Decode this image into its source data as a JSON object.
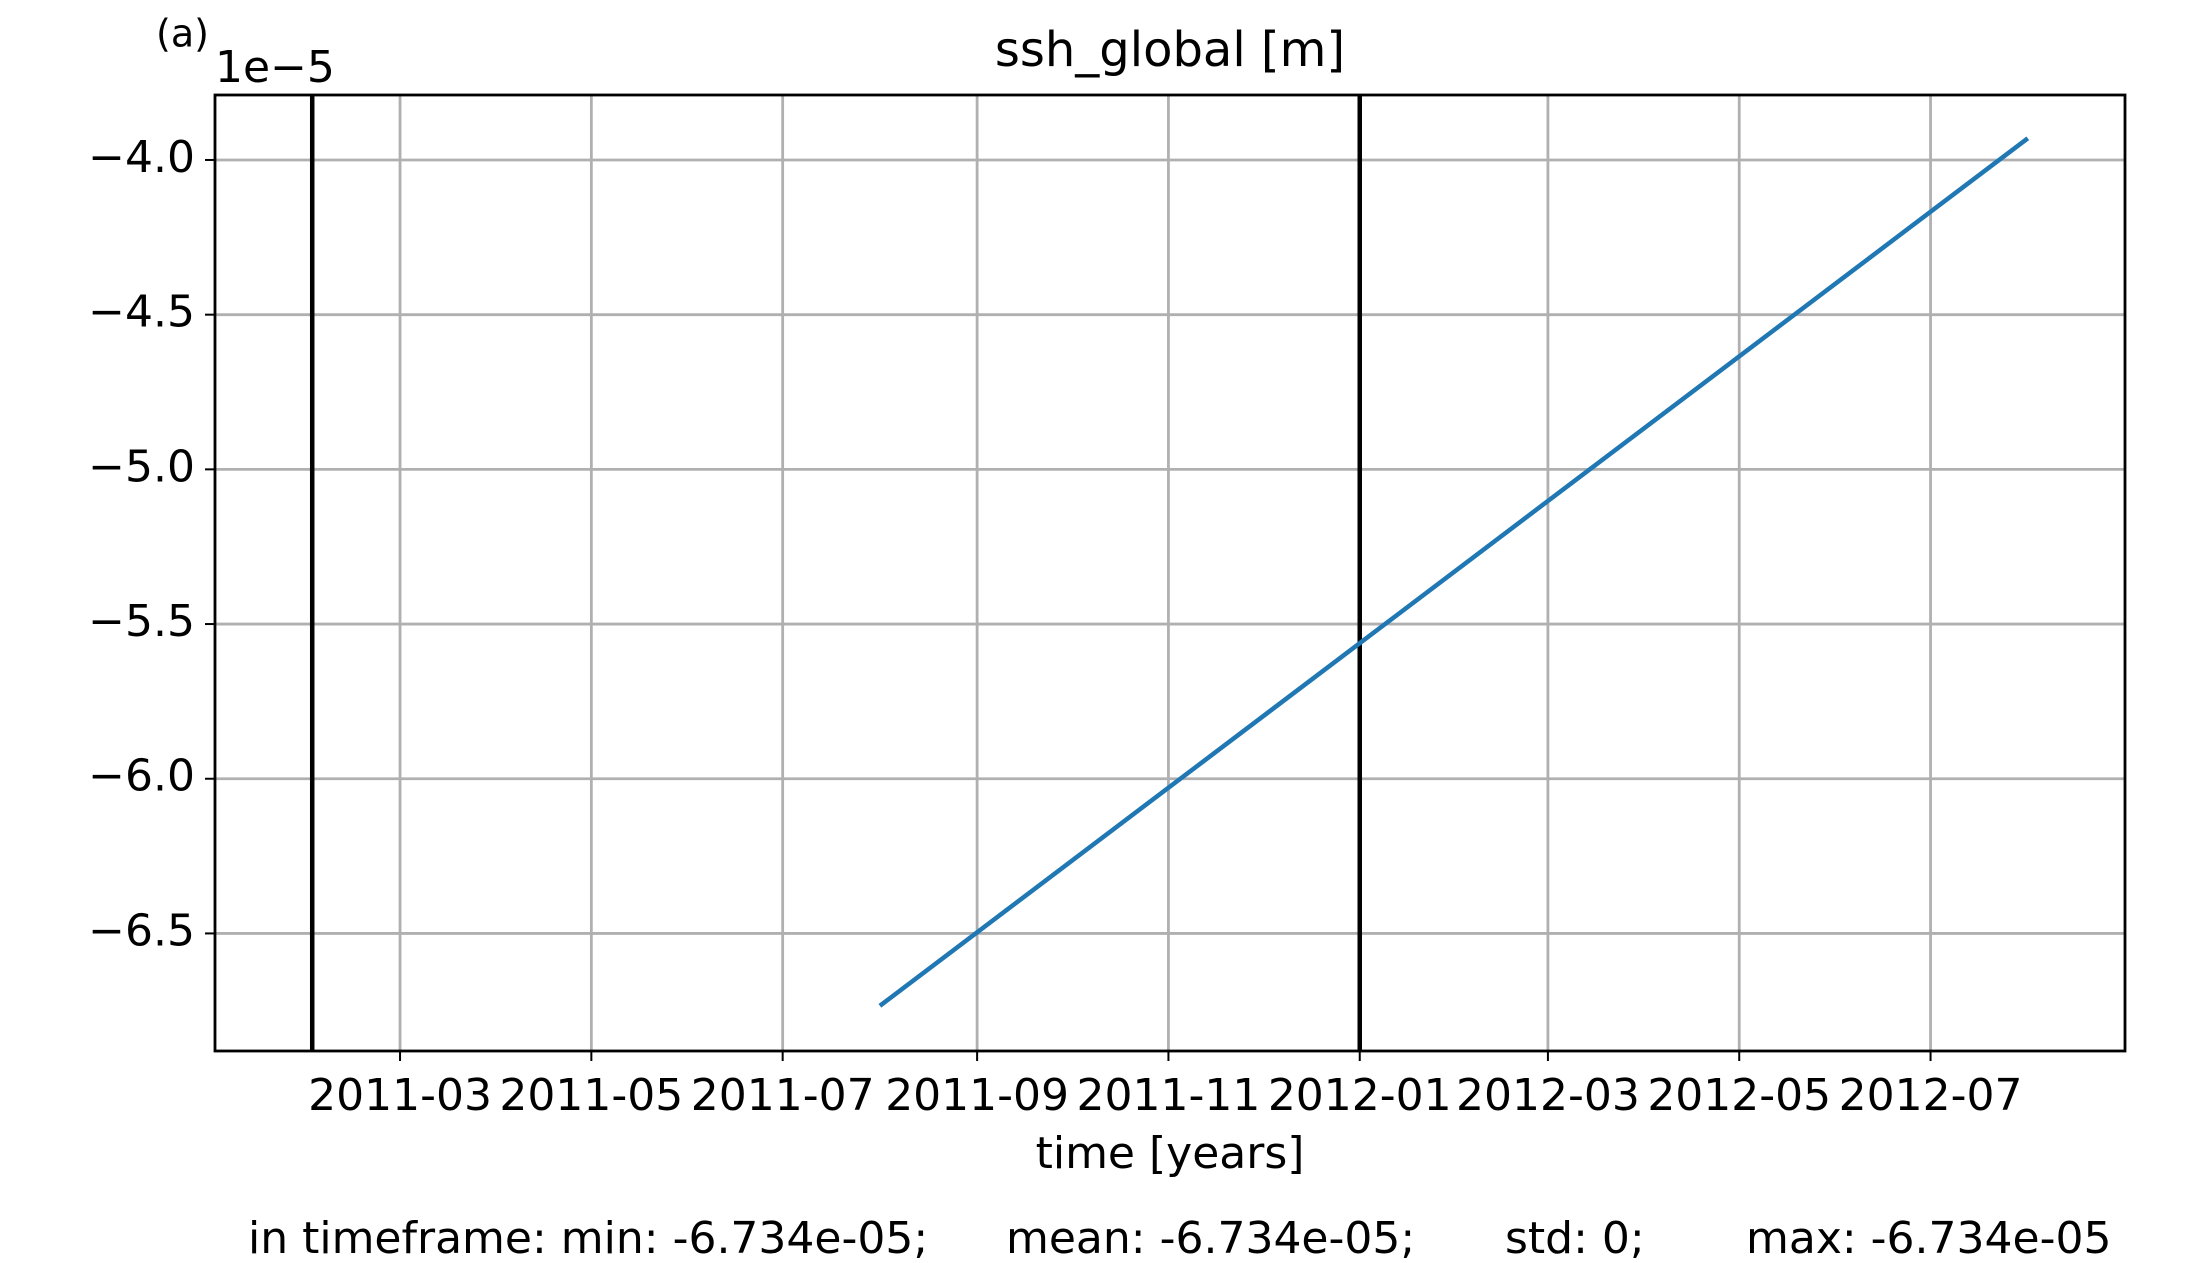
{
  "chart_data": {
    "type": "line",
    "panel_label": "(a)",
    "title": "ssh_global [m]",
    "offset_label": "1e−5",
    "x_label": "time [years]",
    "x": [
      "2011-08",
      "2012-08"
    ],
    "series": [
      {
        "color": "#1f77b4",
        "values": [
          -6.734,
          -3.93
        ]
      }
    ],
    "vlines": [
      "2011-02",
      "2012-01"
    ],
    "vline_color": "#000000",
    "xlim": [
      "2011-01",
      "2012-09"
    ],
    "xticks": [
      "2011-03",
      "2011-05",
      "2011-07",
      "2011-09",
      "2011-11",
      "2012-01",
      "2012-03",
      "2012-05",
      "2012-07"
    ],
    "ylim": [
      -6.88,
      -3.79
    ],
    "yticks": [
      {
        "value": -6.5,
        "label": "−6.5"
      },
      {
        "value": -6,
        "label": "−6.0"
      },
      {
        "value": -5.5,
        "label": "−5.5"
      },
      {
        "value": -5,
        "label": "−5.0"
      },
      {
        "value": -4.5,
        "label": "−4.5"
      },
      {
        "value": -4,
        "label": "−4.0"
      }
    ],
    "grid": true,
    "footer": [
      "in timeframe: min: -6.734e-05;",
      "mean: -6.734e-05;",
      "std: 0;",
      "max: -6.734e-05"
    ]
  }
}
